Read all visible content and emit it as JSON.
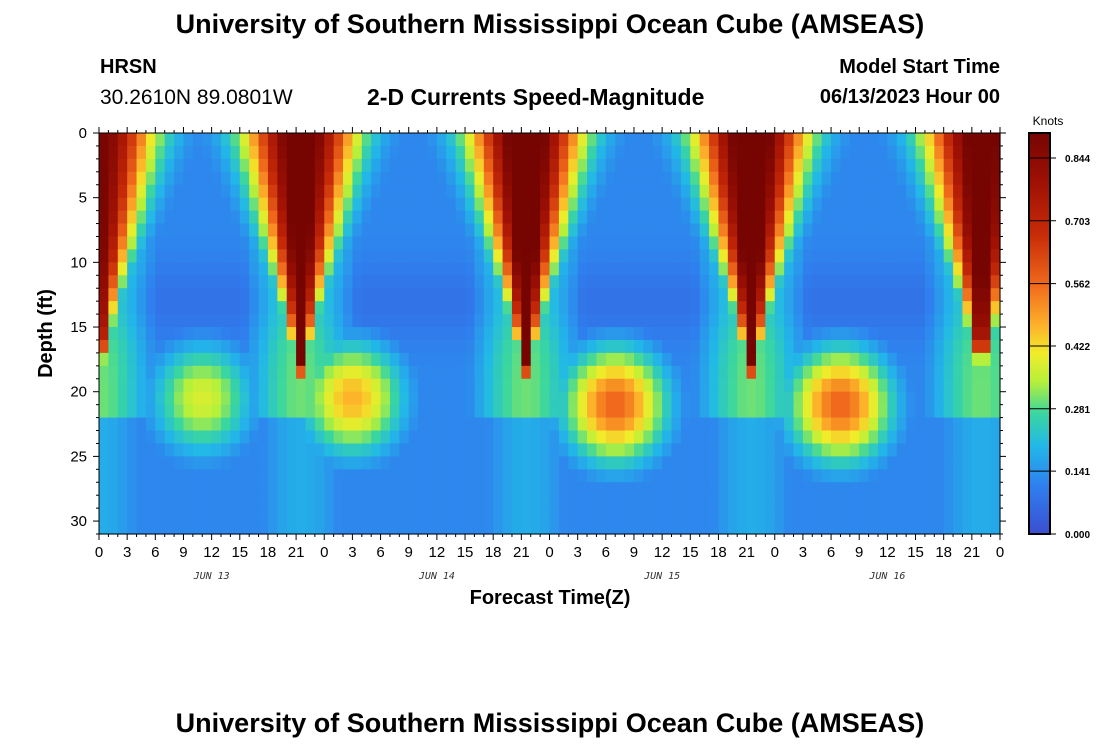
{
  "header": {
    "title": "University of Southern Mississippi Ocean Cube (AMSEAS)",
    "station": "HRSN",
    "coords": "30.2610N  89.0801W",
    "subtitle": "2-D Currents Speed-Magnitude",
    "model_start_label": "Model Start Time",
    "model_start_value": "06/13/2023 Hour 00"
  },
  "footer": {
    "title": "University of Southern Mississippi Ocean Cube (AMSEAS)"
  },
  "chart_data": {
    "type": "heatmap",
    "title": "2-D Currents Speed-Magnitude",
    "xlabel": "Forecast Time(Z)",
    "ylabel": "Depth (ft)",
    "x_range_hours": [
      0,
      96
    ],
    "y_range_ft": [
      0,
      31
    ],
    "y_reversed": true,
    "x_tick_labels": [
      "0",
      "3",
      "6",
      "9",
      "12",
      "15",
      "18",
      "21",
      "0",
      "3",
      "6",
      "9",
      "12",
      "15",
      "18",
      "21",
      "0",
      "3",
      "6",
      "9",
      "12",
      "15",
      "18",
      "21",
      "0",
      "3",
      "6",
      "9",
      "12",
      "15",
      "18",
      "21",
      "0"
    ],
    "y_ticks": [
      0,
      5,
      10,
      15,
      20,
      25,
      30
    ],
    "day_labels": [
      {
        "label": "JUN 13",
        "hour": 12
      },
      {
        "label": "JUN 14",
        "hour": 36
      },
      {
        "label": "JUN 15",
        "hour": 60
      },
      {
        "label": "JUN 16",
        "hour": 84
      }
    ],
    "colorbar": {
      "unit": "Knots",
      "min": 0.0,
      "max": 0.9,
      "tick_values": [
        0.0,
        0.141,
        0.281,
        0.422,
        0.562,
        0.703,
        0.844
      ],
      "tick_labels": [
        "0.000",
        "0.141",
        "0.281",
        "0.422",
        "0.562",
        "0.703",
        "0.844"
      ]
    },
    "surface_maxima_hours": [
      0,
      21.5,
      45.5,
      69.5,
      94
    ],
    "surface_maxima_speed_kt": [
      0.8,
      0.86,
      0.9,
      0.9,
      0.86
    ],
    "deep_maxima": [
      {
        "hour": 11,
        "depth_ft": 20.5,
        "speed_kt": 0.33
      },
      {
        "hour": 27,
        "depth_ft": 20.5,
        "speed_kt": 0.42
      },
      {
        "hour": 55,
        "depth_ft": 21,
        "speed_kt": 0.52
      },
      {
        "hour": 79,
        "depth_ft": 21,
        "speed_kt": 0.52
      }
    ]
  }
}
